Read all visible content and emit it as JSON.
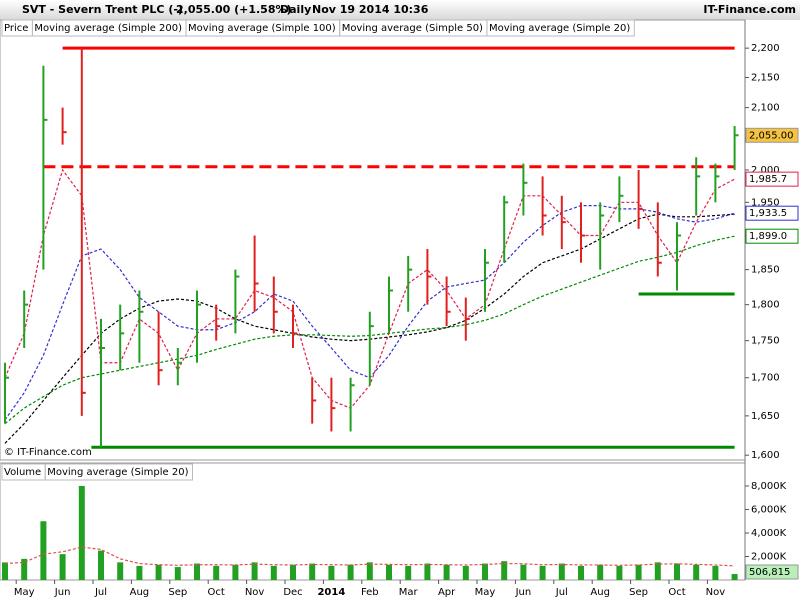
{
  "chart_data": {
    "type": "ohlc",
    "title": "SVT - Severn Trent PLC (-)",
    "quote": "2,055.00 (+1.58%)",
    "interval": "Daily",
    "timestamp": "Nov 19 2014 10:36",
    "source": "IT-Finance.com",
    "watermark": "© IT-Finance.com",
    "categories": [
      null,
      "May",
      null,
      "Jun",
      null,
      "Jul",
      null,
      "Aug",
      null,
      "Sep",
      null,
      "Oct",
      null,
      "Nov",
      null,
      "Dec",
      null,
      "2014",
      null,
      "Feb",
      null,
      "Mar",
      null,
      "Apr",
      null,
      "May",
      null,
      "Jun",
      null,
      "Jul",
      null,
      "Aug",
      null,
      "Sep",
      null,
      "Oct",
      null,
      "Nov",
      null
    ],
    "price": {
      "name": "Price",
      "up_color": "#22a022",
      "down_color": "#e02020",
      "label_color": "#f5c242",
      "last_label": "2,055.00",
      "high": [
        1720,
        1820,
        2170,
        2100,
        2200,
        1780,
        1800,
        1820,
        1790,
        1740,
        1820,
        1800,
        1850,
        1900,
        1840,
        1800,
        1700,
        1700,
        1700,
        1790,
        1840,
        1870,
        1880,
        1840,
        1810,
        1880,
        1960,
        2010,
        1990,
        1960,
        1950,
        1950,
        1990,
        2000,
        1950,
        1920,
        2020,
        2010,
        2070
      ],
      "low": [
        1640,
        1740,
        1850,
        2040,
        1650,
        1610,
        1710,
        1720,
        1690,
        1690,
        1720,
        1750,
        1760,
        1790,
        1760,
        1740,
        1640,
        1630,
        1630,
        1690,
        1760,
        1790,
        1800,
        1770,
        1750,
        1790,
        1860,
        1930,
        1900,
        1880,
        1860,
        1850,
        1920,
        1910,
        1840,
        1820,
        1930,
        1950,
        2000
      ],
      "close": [
        1700,
        1800,
        2080,
        2060,
        1680,
        1740,
        1760,
        1790,
        1710,
        1720,
        1800,
        1770,
        1840,
        1830,
        1790,
        1760,
        1670,
        1660,
        1690,
        1770,
        1820,
        1850,
        1840,
        1790,
        1780,
        1860,
        1950,
        1980,
        1930,
        1920,
        1900,
        1930,
        1960,
        1940,
        1860,
        1900,
        1990,
        1990,
        2055
      ]
    },
    "series": [
      {
        "name": "Moving average (Simple 200)",
        "color": "#008a00",
        "last_label": "1,899.0",
        "values": [
          1640,
          1660,
          1675,
          1690,
          1700,
          1705,
          1710,
          1715,
          1720,
          1725,
          1730,
          1738,
          1745,
          1752,
          1756,
          1758,
          1758,
          1757,
          1756,
          1757,
          1760,
          1763,
          1766,
          1768,
          1772,
          1778,
          1787,
          1800,
          1812,
          1822,
          1832,
          1842,
          1852,
          1862,
          1868,
          1875,
          1885,
          1893,
          1899
        ]
      },
      {
        "name": "Moving average (Simple 100)",
        "color": "#000000",
        "values": [
          1615,
          1640,
          1670,
          1700,
          1730,
          1760,
          1780,
          1795,
          1805,
          1808,
          1805,
          1795,
          1780,
          1770,
          1765,
          1760,
          1755,
          1752,
          1750,
          1752,
          1755,
          1758,
          1762,
          1768,
          1778,
          1795,
          1815,
          1840,
          1860,
          1870,
          1880,
          1895,
          1910,
          1925,
          1932,
          1928,
          1928,
          1930,
          1932
        ]
      },
      {
        "name": "Moving average (Simple 50)",
        "color": "#3030d0",
        "last_label": "1,933.5",
        "values": [
          1645,
          1680,
          1730,
          1800,
          1870,
          1880,
          1850,
          1810,
          1790,
          1770,
          1765,
          1765,
          1775,
          1790,
          1815,
          1805,
          1770,
          1740,
          1710,
          1700,
          1730,
          1770,
          1805,
          1825,
          1830,
          1835,
          1860,
          1890,
          1915,
          1935,
          1945,
          1945,
          1940,
          1940,
          1935,
          1925,
          1920,
          1925,
          1933.5
        ]
      },
      {
        "name": "Moving average (Simple 20)",
        "color": "#e0204a",
        "last_label": "1,985.7",
        "values": [
          1700,
          1760,
          1900,
          2000,
          1960,
          1720,
          1720,
          1780,
          1760,
          1710,
          1760,
          1780,
          1780,
          1820,
          1810,
          1790,
          1700,
          1670,
          1660,
          1690,
          1760,
          1830,
          1850,
          1820,
          1780,
          1800,
          1880,
          1960,
          1960,
          1930,
          1900,
          1900,
          1950,
          1950,
          1900,
          1860,
          1920,
          1970,
          1985.7
        ]
      }
    ],
    "ylim": [
      1594,
      2221
    ],
    "log_scale": true,
    "yticks": [
      {
        "value": 1600,
        "label": "1,600"
      },
      {
        "value": 1650,
        "label": "1,650"
      },
      {
        "value": 1700,
        "label": "1,700"
      },
      {
        "value": 1750,
        "label": "1,750"
      },
      {
        "value": 1800,
        "label": "1,800"
      },
      {
        "value": 1850,
        "label": "1,850"
      },
      {
        "value": 1900,
        "label": "1,900"
      },
      {
        "value": 1950,
        "label": "1,950"
      },
      {
        "value": 2000,
        "label": "2,000"
      },
      {
        "value": 2050,
        "label": "2,050"
      },
      {
        "value": 2100,
        "label": "2,100"
      },
      {
        "value": 2150,
        "label": "2,150"
      },
      {
        "value": 2200,
        "label": "2,200"
      }
    ],
    "hlines": [
      {
        "value": 2200,
        "color": "#ff0000",
        "style": "solid",
        "start": 3,
        "end": 38
      },
      {
        "value": 2005,
        "color": "#ff0000",
        "style": "dashed",
        "start": 2,
        "end": 38
      },
      {
        "value": 1815,
        "color": "#008a00",
        "style": "solid",
        "start": 33,
        "end": 38
      },
      {
        "value": 1610,
        "color": "#008a00",
        "style": "solid",
        "start": 4.5,
        "end": 38
      }
    ],
    "volume": {
      "name": "Volume",
      "color": "#22a022",
      "label_color": "#b8f0b8",
      "last_label": "506,815",
      "values": [
        1500,
        1800,
        5000,
        2200,
        8000,
        2500,
        1500,
        1200,
        1300,
        1100,
        1400,
        1200,
        1300,
        1500,
        1200,
        1300,
        1400,
        1200,
        1300,
        1500,
        1300,
        1200,
        1400,
        1300,
        1200,
        1400,
        1600,
        1300,
        1200,
        1400,
        1200,
        1300,
        1200,
        1300,
        1500,
        1400,
        1300,
        1200,
        506.815
      ],
      "ma": {
        "name": "Moving average (Simple 20)",
        "color": "#e05050",
        "values": [
          1400,
          1500,
          2200,
          2400,
          2800,
          2600,
          1800,
          1400,
          1300,
          1250,
          1300,
          1300,
          1280,
          1350,
          1300,
          1280,
          1320,
          1300,
          1280,
          1350,
          1330,
          1300,
          1320,
          1300,
          1280,
          1320,
          1400,
          1380,
          1300,
          1320,
          1280,
          1280,
          1250,
          1280,
          1350,
          1380,
          1330,
          1280,
          1200
        ]
      },
      "ylim": [
        0,
        9700
      ],
      "yticks": [
        {
          "value": 2000,
          "label": "2,000K"
        },
        {
          "value": 4000,
          "label": "4,000K"
        },
        {
          "value": 6000,
          "label": "6,000K"
        },
        {
          "value": 8000,
          "label": "8,000K"
        }
      ]
    }
  }
}
